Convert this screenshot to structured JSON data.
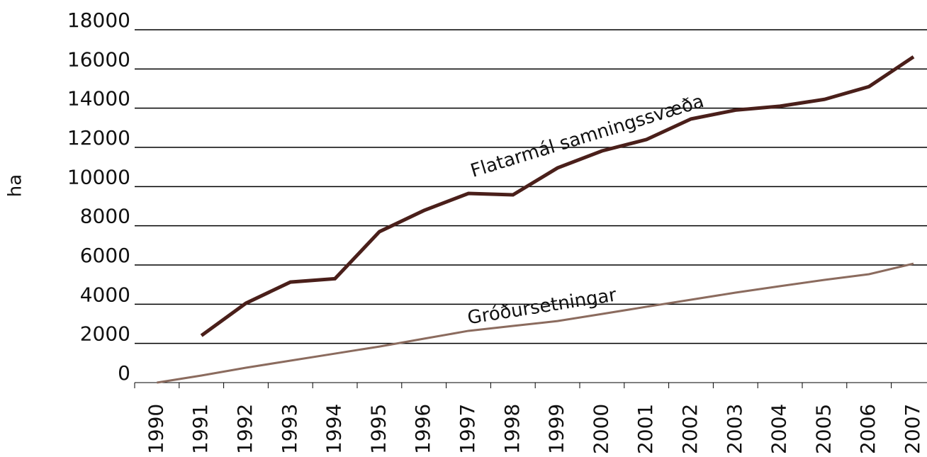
{
  "chart_data": {
    "type": "line",
    "y_label": "ha",
    "categories": [
      "1990",
      "1991",
      "1992",
      "1993",
      "1994",
      "1995",
      "1996",
      "1997",
      "1998",
      "1999",
      "2000",
      "2001",
      "2002",
      "2003",
      "2004",
      "2005",
      "2006",
      "2007"
    ],
    "series": [
      {
        "name": "Flatarmál samningssvæða",
        "color": "#4a1f1a",
        "values": [
          null,
          2400,
          4050,
          5130,
          5300,
          7700,
          8780,
          9650,
          9580,
          10950,
          11820,
          12400,
          13450,
          13900,
          14100,
          14450,
          15100,
          16620
        ]
      },
      {
        "name": "Gróðursetningar",
        "color": "#8b6b5e",
        "values": [
          0,
          360,
          760,
          1120,
          1480,
          1840,
          2240,
          2640,
          2890,
          3140,
          3500,
          3870,
          4230,
          4590,
          4920,
          5240,
          5530,
          6070
        ]
      }
    ],
    "ylim": [
      0,
      18000
    ],
    "yticks": [
      0,
      2000,
      4000,
      6000,
      8000,
      10000,
      12000,
      14000,
      16000,
      18000
    ],
    "grid": true
  }
}
